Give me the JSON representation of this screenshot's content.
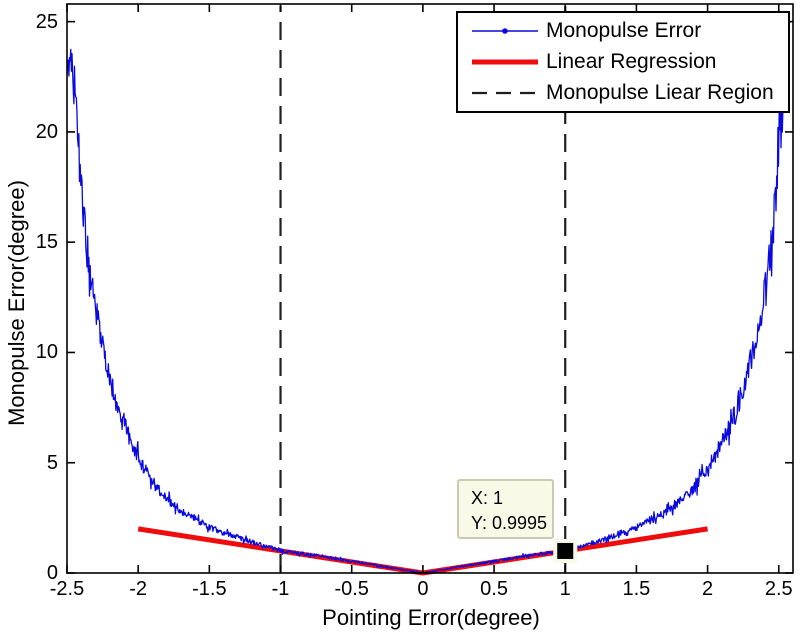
{
  "chart_data": {
    "type": "line",
    "title": "",
    "xlabel": "Pointing Error(degree)",
    "ylabel": "Monopulse Error(degree)",
    "xlim": [
      -2.5,
      2.6
    ],
    "ylim": [
      0,
      25.8
    ],
    "x_ticks": [
      -2.5,
      -2,
      -1.5,
      -1,
      -0.5,
      0,
      0.5,
      1,
      1.5,
      2,
      2.5
    ],
    "y_ticks": [
      0,
      5,
      10,
      15,
      20,
      25
    ],
    "grid": false,
    "legend_position": "top-right",
    "series": [
      {
        "name": "Monopulse Error",
        "type": "noisy-line",
        "color": "#0a0ae0",
        "marker": "point",
        "x_range": [
          -2.5,
          2.56
        ],
        "profile_abs_x_vs_y": [
          [
            0,
            0
          ],
          [
            0.25,
            0.27
          ],
          [
            0.5,
            0.53
          ],
          [
            0.75,
            0.79
          ],
          [
            1.0,
            1.02
          ],
          [
            1.1,
            1.2
          ],
          [
            1.25,
            1.5
          ],
          [
            1.5,
            2.05
          ],
          [
            1.75,
            2.95
          ],
          [
            1.9,
            3.8
          ],
          [
            2.0,
            4.7
          ],
          [
            2.1,
            5.9
          ],
          [
            2.2,
            7.3
          ],
          [
            2.3,
            9.6
          ],
          [
            2.4,
            12.6
          ],
          [
            2.45,
            15.0
          ],
          [
            2.5,
            18.5
          ],
          [
            2.53,
            21.0
          ],
          [
            2.56,
            23.5
          ]
        ],
        "noise": {
          "base": 0.025,
          "scale": 0.06,
          "spike_prob": 0.1,
          "spike_mult": 2.0
        },
        "left_side_skew": {
          "threshold": 1.5,
          "shift_per_unit": 0.1
        }
      },
      {
        "name": "Linear Regression",
        "type": "line",
        "color": "#ee0c0c",
        "width": 5,
        "points": [
          [
            -2,
            2
          ],
          [
            0,
            0
          ],
          [
            2,
            2
          ]
        ]
      },
      {
        "name": "Monopulse Liear Region",
        "type": "vertical-dashed",
        "color": "#1f1f1f",
        "width": 2.2,
        "x_positions": [
          -1,
          1
        ]
      }
    ],
    "datatip": {
      "x_text": "X: 1",
      "y_text": "Y: 0.9995",
      "anchor": [
        1,
        0.9995
      ],
      "marker_color": "#000000",
      "box_color": "#f9f9e8"
    }
  }
}
